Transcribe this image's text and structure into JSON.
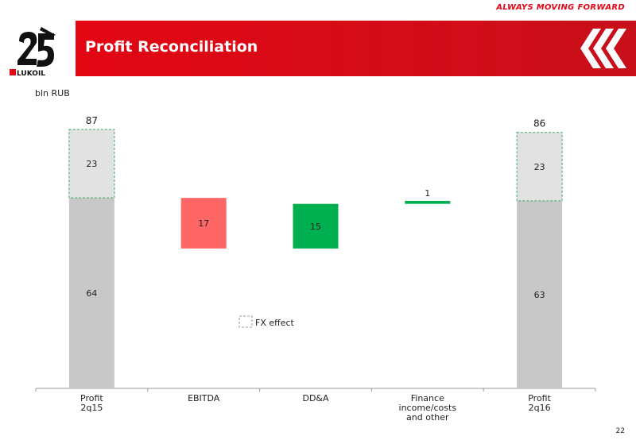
{
  "header": {
    "tagline": "ALWAYS MOVING FORWARD",
    "title": "Profit Reconciliation",
    "logo_years": "YEARS",
    "logo_text": "LUKOIL"
  },
  "page_number": "22",
  "colors": {
    "brand_red": "#e30613",
    "base_bar": "#c8c8c8",
    "fx_bar": "#e2e2e2",
    "decrease": "#ff6666",
    "increase": "#00b050"
  },
  "chart_data": {
    "type": "bar",
    "subtype": "waterfall",
    "unit_label": "bln RUB",
    "categories": [
      "Profit\n2q15",
      "EBITDA",
      "DD&A",
      "Finance\nincome/costs\nand other",
      "Profit\n2q16"
    ],
    "ylim": [
      0,
      87
    ],
    "steps": [
      {
        "category": "Profit\n2q15",
        "kind": "total",
        "base": 64,
        "fx": 23,
        "total": 87
      },
      {
        "category": "EBITDA",
        "kind": "decrease",
        "value": 17,
        "from": 64,
        "to": 47
      },
      {
        "category": "DD&A",
        "kind": "increase",
        "value": 15,
        "from": 47,
        "to": 62
      },
      {
        "category": "Finance\nincome/costs\nand other",
        "kind": "increase",
        "value": 1,
        "from": 62,
        "to": 63
      },
      {
        "category": "Profit\n2q16",
        "kind": "total",
        "base": 63,
        "fx": 23,
        "total": 86
      }
    ],
    "legend": {
      "label": "FX effect",
      "placement": "center"
    },
    "grid": false
  }
}
